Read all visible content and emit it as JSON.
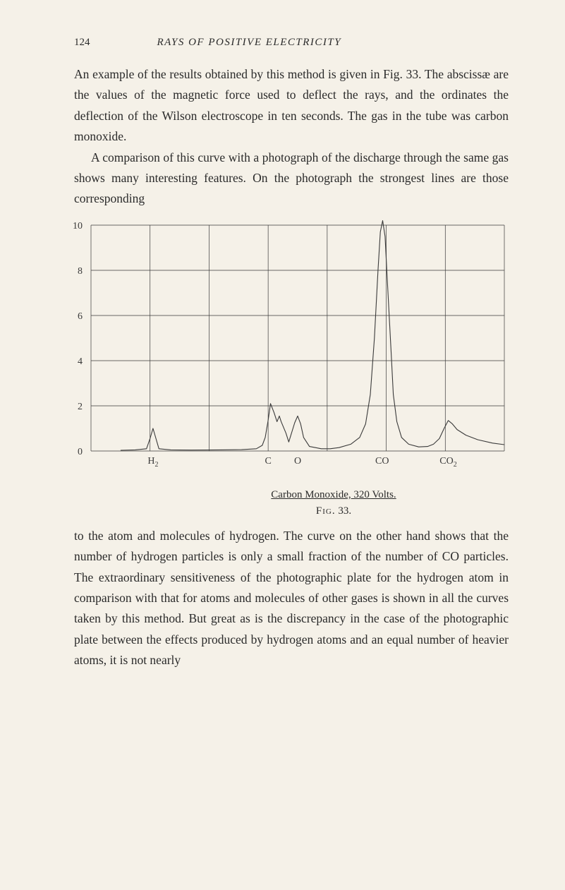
{
  "header": {
    "page_number": "124",
    "running_title": "RAYS OF POSITIVE ELECTRICITY"
  },
  "para1": "An example of the results obtained by this method is given in Fig. 33.  The abscissæ are the values of the magnetic force used to deflect the rays, and the ordinates the deflection of the Wilson electroscope in ten seconds.  The gas in the tube was carbon monoxide.",
  "para2": "A comparison of this curve with a photograph of the dis­charge through the same gas shows many interesting features. On the photograph the strongest lines are those corresponding",
  "chart": {
    "type": "line",
    "background_color": "#f5f1e8",
    "line_color": "#3a3a3a",
    "grid_color": "#3a3a3a",
    "line_width": 1.1,
    "grid_width": 0.7,
    "ylim": [
      0,
      10
    ],
    "yticks": [
      0,
      2,
      4,
      6,
      8,
      10
    ],
    "ytick_labels": [
      "0",
      "2",
      "4",
      "6",
      "8",
      "10"
    ],
    "x_range_cols": 7,
    "x_labels": [
      {
        "col": 1.05,
        "text": "H",
        "sub": "2"
      },
      {
        "col": 3.0,
        "text": "C"
      },
      {
        "col": 3.5,
        "text": "O"
      },
      {
        "col": 4.93,
        "text": "CO"
      },
      {
        "col": 6.05,
        "text": "CO",
        "sub": "2"
      }
    ],
    "curve": [
      [
        0.5,
        0.03
      ],
      [
        0.75,
        0.05
      ],
      [
        0.94,
        0.1
      ],
      [
        1.0,
        0.55
      ],
      [
        1.05,
        1.0
      ],
      [
        1.1,
        0.55
      ],
      [
        1.15,
        0.1
      ],
      [
        1.35,
        0.05
      ],
      [
        1.7,
        0.04
      ],
      [
        2.2,
        0.05
      ],
      [
        2.55,
        0.06
      ],
      [
        2.8,
        0.1
      ],
      [
        2.9,
        0.25
      ],
      [
        2.95,
        0.6
      ],
      [
        3.0,
        1.35
      ],
      [
        3.04,
        2.1
      ],
      [
        3.1,
        1.7
      ],
      [
        3.15,
        1.3
      ],
      [
        3.19,
        1.55
      ],
      [
        3.22,
        1.3
      ],
      [
        3.3,
        0.8
      ],
      [
        3.35,
        0.4
      ],
      [
        3.45,
        1.25
      ],
      [
        3.5,
        1.55
      ],
      [
        3.55,
        1.2
      ],
      [
        3.6,
        0.6
      ],
      [
        3.7,
        0.2
      ],
      [
        3.9,
        0.1
      ],
      [
        4.05,
        0.1
      ],
      [
        4.2,
        0.15
      ],
      [
        4.4,
        0.3
      ],
      [
        4.55,
        0.6
      ],
      [
        4.65,
        1.2
      ],
      [
        4.73,
        2.5
      ],
      [
        4.8,
        5.0
      ],
      [
        4.86,
        8.0
      ],
      [
        4.9,
        9.7
      ],
      [
        4.94,
        10.2
      ],
      [
        4.98,
        9.5
      ],
      [
        5.02,
        7.5
      ],
      [
        5.08,
        4.5
      ],
      [
        5.12,
        2.5
      ],
      [
        5.18,
        1.3
      ],
      [
        5.26,
        0.6
      ],
      [
        5.38,
        0.3
      ],
      [
        5.55,
        0.18
      ],
      [
        5.7,
        0.2
      ],
      [
        5.8,
        0.3
      ],
      [
        5.9,
        0.55
      ],
      [
        5.98,
        1.0
      ],
      [
        6.05,
        1.35
      ],
      [
        6.12,
        1.2
      ],
      [
        6.2,
        0.95
      ],
      [
        6.35,
        0.7
      ],
      [
        6.55,
        0.5
      ],
      [
        6.8,
        0.35
      ],
      [
        7.0,
        0.28
      ]
    ]
  },
  "caption_prefix": "Carbon Monoxide,",
  "caption_value": "  320  Volts.",
  "fig_label_prefix": "Fig.",
  "fig_label_num": " 33.",
  "para3": "to the atom and molecules of hydrogen.  The curve on the other hand shows that the number of hydrogen particles is only a small fraction of the number of CO particles.  The extraordinary sensitiveness of the photographic plate for the hydrogen atom in comparison with that for atoms and mole­cules of other gases is shown in all the curves taken by this method.  But great as is the discrepancy in the case of the photographic plate between the effects produced by hydrogen atoms and an equal number of heavier atoms, it is not nearly"
}
